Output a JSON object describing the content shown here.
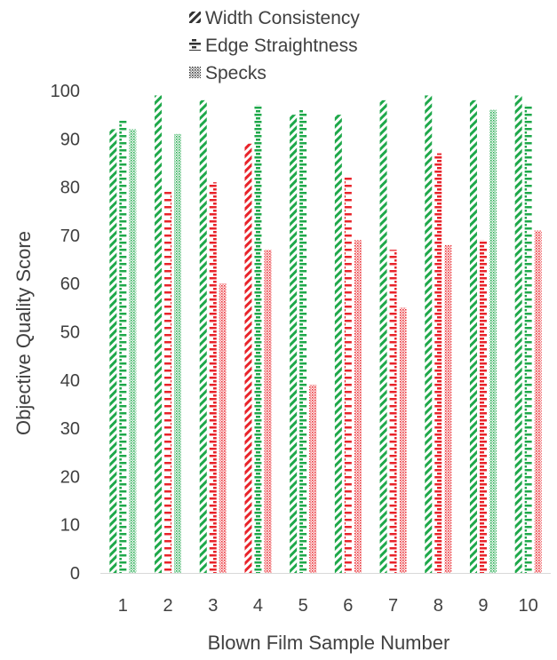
{
  "chart_data": {
    "type": "bar",
    "title": "",
    "xlabel": "Blown Film Sample Number",
    "ylabel": "Objective Quality Score",
    "ylim": [
      0,
      100
    ],
    "yticks": [
      0,
      10,
      20,
      30,
      40,
      50,
      60,
      70,
      80,
      90,
      100
    ],
    "grid": false,
    "legend_position": "top",
    "categories": [
      "1",
      "2",
      "3",
      "4",
      "5",
      "6",
      "7",
      "8",
      "9",
      "10"
    ],
    "series": [
      {
        "name": "Width Consistency",
        "pattern": "diagonal-stripes",
        "values": [
          92,
          99,
          98,
          89,
          95,
          95,
          98,
          99,
          98,
          99
        ]
      },
      {
        "name": "Edge Straightness",
        "pattern": "horizontal-dashes",
        "values": [
          94,
          79,
          81,
          97,
          96,
          82,
          67,
          87,
          69,
          97
        ]
      },
      {
        "name": "Specks",
        "pattern": "dotted",
        "values": [
          92,
          91,
          60,
          67,
          39,
          69,
          55,
          68,
          96,
          71
        ]
      }
    ],
    "colors": {
      "red": "#e8232a",
      "green": "#1ea84a",
      "text": "#404040",
      "axis": "#d9d9d9"
    },
    "thresholds": {
      "red_below": 90
    }
  }
}
